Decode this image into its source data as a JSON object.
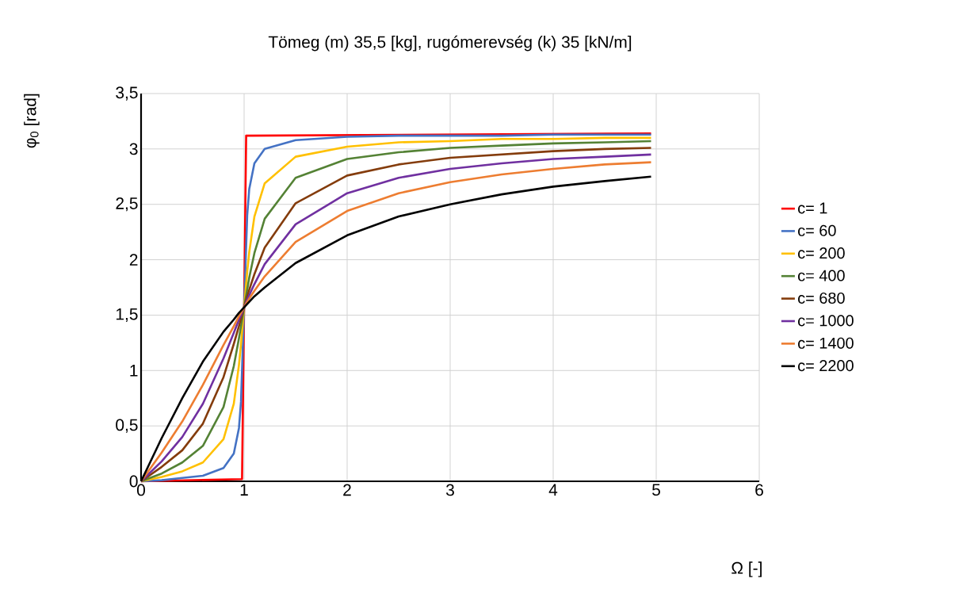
{
  "chart_data": {
    "type": "line",
    "title": "Tömeg (m) 35,5 [kg],   rugómerevség (k) 35 [kN/m]",
    "xlabel": "Ω  [-]",
    "ylabel": "φ$_{0}$ [rad]",
    "x": [
      0,
      0.2,
      0.4,
      0.6,
      0.8,
      0.9,
      0.95,
      0.97,
      1,
      1.03,
      1.05,
      1.1,
      1.2,
      1.5,
      2,
      2.5,
      3,
      3.5,
      4,
      4.5,
      4.95
    ],
    "series": [
      {
        "name": "c= 1",
        "color": "#ff0000",
        "x": [
          0,
          0.98,
          1,
          1.02,
          4.95
        ],
        "values": [
          0,
          0.02,
          1.57,
          3.12,
          3.14
        ]
      },
      {
        "name": "c= 60",
        "color": "#4472c4",
        "values": [
          0,
          0.01,
          0.03,
          0.05,
          0.12,
          0.25,
          0.48,
          0.72,
          1.57,
          2.4,
          2.64,
          2.87,
          3.0,
          3.08,
          3.11,
          3.12,
          3.12,
          3.12,
          3.13,
          3.13,
          3.13
        ]
      },
      {
        "name": "c= 200",
        "color": "#ffc000",
        "values": [
          0,
          0.04,
          0.09,
          0.17,
          0.38,
          0.7,
          1.05,
          1.24,
          1.57,
          1.89,
          2.07,
          2.39,
          2.69,
          2.93,
          3.02,
          3.06,
          3.07,
          3.09,
          3.09,
          3.1,
          3.1
        ]
      },
      {
        "name": "c= 400",
        "color": "#548235",
        "values": [
          0,
          0.07,
          0.17,
          0.32,
          0.67,
          1.04,
          1.29,
          1.4,
          1.57,
          1.73,
          1.84,
          2.06,
          2.37,
          2.74,
          2.91,
          2.97,
          3.01,
          3.03,
          3.05,
          3.06,
          3.07
        ]
      },
      {
        "name": "c= 680",
        "color": "#843c0c",
        "values": [
          0,
          0.13,
          0.28,
          0.52,
          0.94,
          1.24,
          1.4,
          1.47,
          1.57,
          1.67,
          1.73,
          1.87,
          2.11,
          2.51,
          2.76,
          2.86,
          2.92,
          2.95,
          2.98,
          3.0,
          3.01
        ]
      },
      {
        "name": "c= 1000",
        "color": "#7030a0",
        "values": [
          0,
          0.18,
          0.4,
          0.7,
          1.11,
          1.34,
          1.46,
          1.5,
          1.57,
          1.64,
          1.68,
          1.78,
          1.96,
          2.32,
          2.6,
          2.74,
          2.82,
          2.87,
          2.91,
          2.93,
          2.95
        ]
      },
      {
        "name": "c= 1400",
        "color": "#ed7d31",
        "values": [
          0,
          0.26,
          0.54,
          0.87,
          1.23,
          1.4,
          1.49,
          1.52,
          1.57,
          1.62,
          1.65,
          1.72,
          1.85,
          2.16,
          2.44,
          2.6,
          2.7,
          2.77,
          2.82,
          2.86,
          2.88
        ]
      },
      {
        "name": "c= 2200",
        "color": "#000000",
        "values": [
          0,
          0.39,
          0.75,
          1.08,
          1.35,
          1.46,
          1.52,
          1.54,
          1.57,
          1.6,
          1.62,
          1.67,
          1.75,
          1.97,
          2.22,
          2.39,
          2.5,
          2.59,
          2.66,
          2.71,
          2.75
        ]
      }
    ],
    "xlim": [
      0,
      6
    ],
    "xticks": [
      0,
      1,
      2,
      3,
      4,
      5,
      6
    ],
    "ylim": [
      0,
      3.5
    ],
    "yticks": [
      0,
      {
        "value": 0.5,
        "label": "0,5"
      },
      1,
      {
        "value": 1.5,
        "label": "1,5"
      },
      2,
      {
        "value": 2.5,
        "label": "2,5"
      },
      3,
      {
        "value": 3.5,
        "label": "3,5"
      }
    ],
    "grid": true,
    "legend": "right",
    "marker": "none",
    "line_style": "solid"
  }
}
